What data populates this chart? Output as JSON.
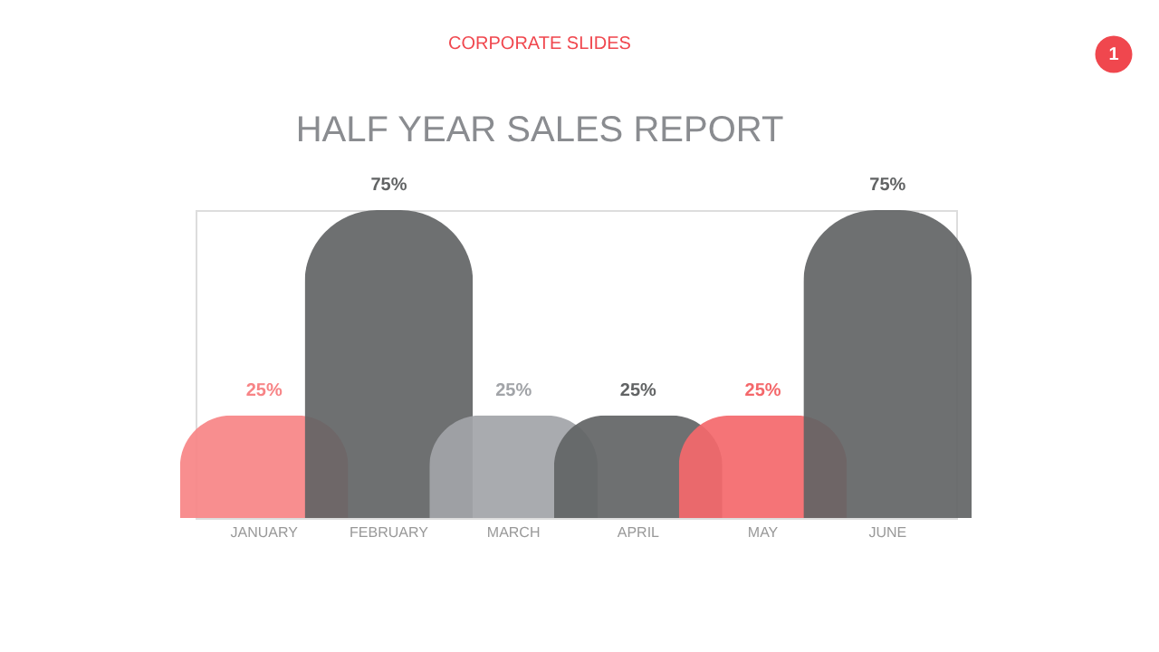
{
  "chart_data": {
    "type": "bar",
    "title": "HALF YEAR SALES REPORT",
    "annotations": [
      "CORPORATE SLIDES",
      "1"
    ],
    "categories": [
      "JANUARY",
      "FEBRUARY",
      "MARCH",
      "APRIL",
      "MAY",
      "JUNE"
    ],
    "values": [
      25,
      75,
      25,
      25,
      25,
      75
    ],
    "value_labels": [
      "25%",
      "75%",
      "25%",
      "25%",
      "25%",
      "75%"
    ],
    "colors": [
      "#f78486",
      "#626465",
      "#a2a4a8",
      "#626465",
      "#f4686b",
      "#626465"
    ],
    "grid": false
  }
}
